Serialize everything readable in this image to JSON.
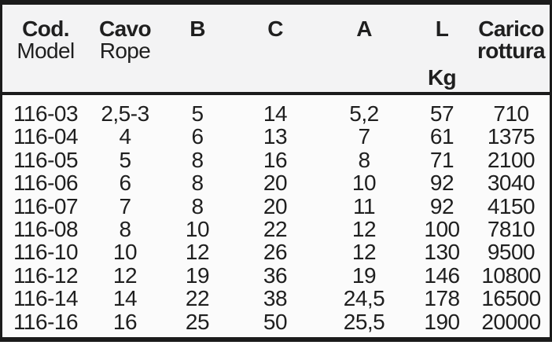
{
  "header": {
    "cod": {
      "line1": "Cod.",
      "line2": "Model"
    },
    "cavo": {
      "line1": "Cavo",
      "line2": "Rope"
    },
    "b": {
      "line1": "B"
    },
    "c": {
      "line1": "C"
    },
    "a": {
      "line1": "A"
    },
    "l": {
      "line1": "L",
      "unit": "Kg"
    },
    "carico": {
      "line1": "Carico",
      "line2": "rottura"
    }
  },
  "rows": [
    [
      "116-03",
      "2,5-3",
      "5",
      "14",
      "5,2",
      "57",
      "710"
    ],
    [
      "116-04",
      "4",
      "6",
      "13",
      "7",
      "61",
      "1375"
    ],
    [
      "116-05",
      "5",
      "8",
      "16",
      "8",
      "71",
      "2100"
    ],
    [
      "116-06",
      "6",
      "8",
      "20",
      "10",
      "92",
      "3040"
    ],
    [
      "116-07",
      "7",
      "8",
      "20",
      "11",
      "92",
      "4150"
    ],
    [
      "116-08",
      "8",
      "10",
      "22",
      "12",
      "100",
      "7810"
    ],
    [
      "116-10",
      "10",
      "12",
      "26",
      "12",
      "130",
      "9500"
    ],
    [
      "116-12",
      "12",
      "19",
      "36",
      "19",
      "146",
      "10800"
    ],
    [
      "116-14",
      "14",
      "22",
      "38",
      "24,5",
      "178",
      "16500"
    ],
    [
      "116-16",
      "16",
      "25",
      "50",
      "25,5",
      "190",
      "20000"
    ]
  ],
  "colors": {
    "border": "#1b1b1b",
    "text": "#1f1f1f",
    "header_bg": "#f3f3f4",
    "body_bg": "#fbfbfb"
  }
}
